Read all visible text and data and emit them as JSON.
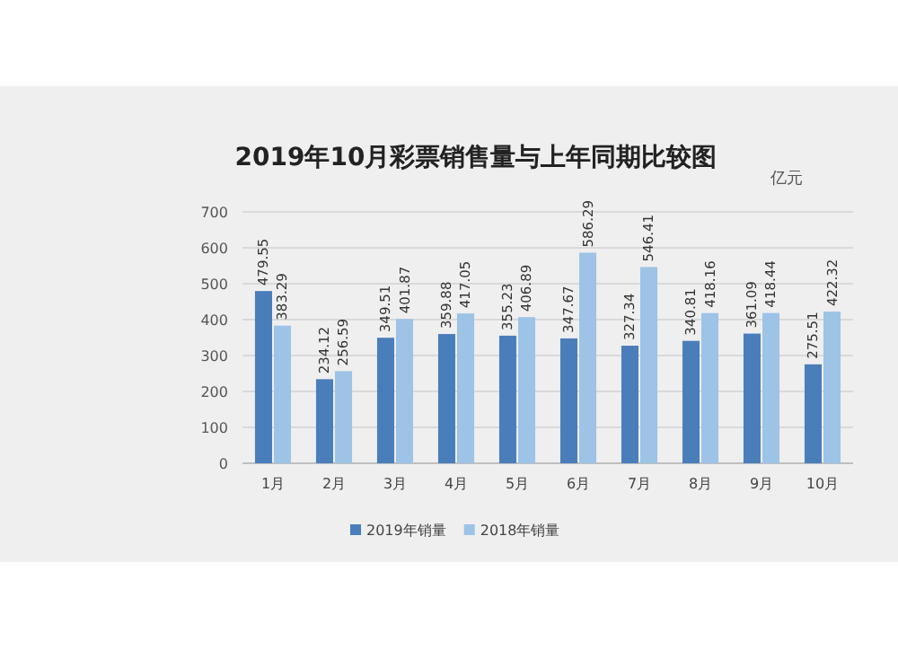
{
  "chart_data": {
    "type": "bar",
    "title": "2019年10月彩票销售量与上年同期比较图",
    "ylabel": "亿元",
    "categories": [
      "1月",
      "2月",
      "3月",
      "4月",
      "5月",
      "6月",
      "7月",
      "8月",
      "9月",
      "10月"
    ],
    "series": [
      {
        "name": "2019年销量",
        "color": "#4a7ebb",
        "values": [
          479.55,
          234.12,
          349.51,
          359.88,
          355.23,
          347.67,
          327.34,
          340.81,
          361.09,
          275.51
        ]
      },
      {
        "name": "2018年销量",
        "color": "#9dc3e6",
        "values": [
          383.29,
          256.59,
          401.87,
          417.05,
          406.89,
          586.29,
          546.41,
          418.16,
          418.44,
          422.32
        ]
      }
    ],
    "ylim": [
      0,
      700
    ],
    "yticks": [
      0,
      100,
      200,
      300,
      400,
      500,
      600,
      700
    ],
    "grid": "y",
    "legend": "bottom",
    "data_labels": true
  }
}
